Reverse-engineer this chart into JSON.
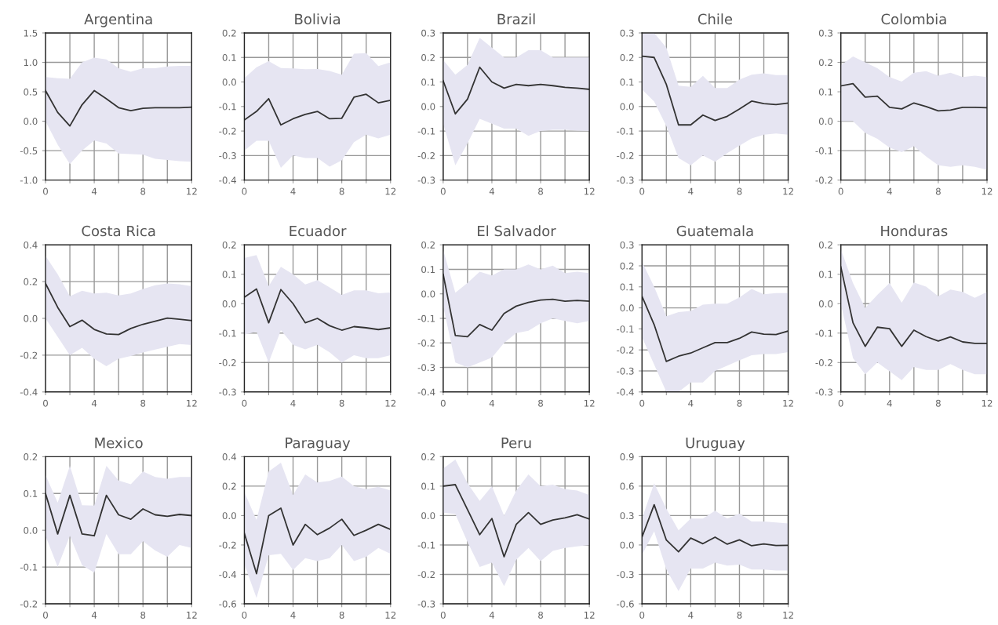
{
  "chart_data": [
    {
      "type": "line",
      "title": "Argentina",
      "x": [
        0,
        1,
        2,
        3,
        4,
        5,
        6,
        7,
        8,
        9,
        10,
        11,
        12
      ],
      "xlim": [
        0,
        12
      ],
      "ylim": [
        -1.0,
        1.5
      ],
      "grid": true,
      "xticks": [
        0,
        {
          "value": 2,
          "label": null
        },
        4,
        {
          "value": 6,
          "label": null
        },
        8,
        {
          "value": 10,
          "label": null
        },
        12
      ],
      "yticks": [
        {
          "value": -1.0,
          "label": "-1.0"
        },
        {
          "value": -0.5,
          "label": "-0.5"
        },
        {
          "value": 0,
          "label": "0.0"
        },
        {
          "value": 0.5,
          "label": "0.5"
        },
        {
          "value": 1.0,
          "label": "1.0"
        },
        {
          "value": 1.5,
          "label": "1.5"
        }
      ],
      "series": [
        {
          "color": "#333333",
          "values": [
            0.52,
            0.15,
            -0.08,
            0.28,
            0.52,
            0.38,
            0.23,
            0.18,
            0.22,
            0.23,
            0.23,
            0.23,
            0.24
          ],
          "lower": [
            0.0,
            -0.4,
            -0.73,
            -0.5,
            -0.33,
            -0.38,
            -0.55,
            -0.56,
            -0.57,
            -0.64,
            -0.66,
            -0.68,
            -0.69
          ],
          "upper": [
            0.75,
            0.73,
            0.72,
            1.0,
            1.08,
            1.05,
            0.9,
            0.84,
            0.9,
            0.9,
            0.93,
            0.94,
            0.94
          ]
        }
      ]
    },
    {
      "type": "line",
      "title": "Bolivia",
      "x": [
        0,
        1,
        2,
        3,
        4,
        5,
        6,
        7,
        8,
        9,
        10,
        11,
        12
      ],
      "xlim": [
        0,
        12
      ],
      "ylim": [
        -0.4,
        0.2
      ],
      "grid": true,
      "xticks": [
        0,
        {
          "value": 2,
          "label": null
        },
        4,
        {
          "value": 6,
          "label": null
        },
        8,
        {
          "value": 10,
          "label": null
        },
        12
      ],
      "yticks": [
        {
          "value": -0.4,
          "label": "-0.4"
        },
        {
          "value": -0.3,
          "label": "-0.3"
        },
        {
          "value": -0.2,
          "label": "-0.2"
        },
        {
          "value": -0.1,
          "label": "-0.1"
        },
        {
          "value": 0,
          "label": "0.0"
        },
        {
          "value": 0.1,
          "label": "0.1"
        },
        {
          "value": 0.2,
          "label": "0.2"
        }
      ],
      "series": [
        {
          "color": "#333333",
          "values": [
            -0.155,
            -0.12,
            -0.068,
            -0.175,
            -0.15,
            -0.132,
            -0.12,
            -0.15,
            -0.148,
            -0.062,
            -0.05,
            -0.085,
            -0.075
          ],
          "lower": [
            -0.28,
            -0.24,
            -0.24,
            -0.35,
            -0.3,
            -0.31,
            -0.31,
            -0.345,
            -0.32,
            -0.245,
            -0.215,
            -0.23,
            -0.215
          ],
          "upper": [
            0.015,
            0.06,
            0.085,
            0.057,
            0.055,
            0.052,
            0.053,
            0.045,
            0.03,
            0.115,
            0.118,
            0.065,
            0.08
          ]
        }
      ]
    },
    {
      "type": "line",
      "title": "Brazil",
      "x": [
        0,
        1,
        2,
        3,
        4,
        5,
        6,
        7,
        8,
        9,
        10,
        11,
        12
      ],
      "xlim": [
        0,
        12
      ],
      "ylim": [
        -0.3,
        0.3
      ],
      "grid": true,
      "xticks": [
        0,
        {
          "value": 2,
          "label": null
        },
        4,
        {
          "value": 6,
          "label": null
        },
        8,
        {
          "value": 10,
          "label": null
        },
        12
      ],
      "yticks": [
        {
          "value": -0.3,
          "label": "-0.3"
        },
        {
          "value": -0.2,
          "label": "-0.2"
        },
        {
          "value": -0.1,
          "label": "-0.1"
        },
        {
          "value": 0,
          "label": "0.0"
        },
        {
          "value": 0.1,
          "label": "0.1"
        },
        {
          "value": 0.2,
          "label": "0.2"
        },
        {
          "value": 0.3,
          "label": "0.3"
        }
      ],
      "series": [
        {
          "color": "#333333",
          "values": [
            0.105,
            -0.03,
            0.03,
            0.16,
            0.1,
            0.075,
            0.09,
            0.085,
            0.09,
            0.085,
            0.078,
            0.075,
            0.07
          ],
          "lower": [
            -0.07,
            -0.24,
            -0.15,
            -0.05,
            -0.07,
            -0.09,
            -0.09,
            -0.12,
            -0.1,
            -0.095,
            -0.095,
            -0.098,
            -0.1
          ],
          "upper": [
            0.19,
            0.13,
            0.17,
            0.28,
            0.24,
            0.2,
            0.2,
            0.23,
            0.23,
            0.2,
            0.2,
            0.2,
            0.2
          ]
        }
      ]
    },
    {
      "type": "line",
      "title": "Chile",
      "x": [
        0,
        1,
        2,
        3,
        4,
        5,
        6,
        7,
        8,
        9,
        10,
        11,
        12
      ],
      "xlim": [
        0,
        12
      ],
      "ylim": [
        -0.3,
        0.3
      ],
      "grid": true,
      "xticks": [
        0,
        {
          "value": 2,
          "label": null
        },
        4,
        {
          "value": 6,
          "label": null
        },
        8,
        {
          "value": 10,
          "label": null
        },
        12
      ],
      "yticks": [
        {
          "value": -0.3,
          "label": "-0.3"
        },
        {
          "value": -0.2,
          "label": "-0.2"
        },
        {
          "value": -0.1,
          "label": "-0.1"
        },
        {
          "value": 0,
          "label": "0.0"
        },
        {
          "value": 0.1,
          "label": "0.1"
        },
        {
          "value": 0.2,
          "label": "0.2"
        },
        {
          "value": 0.3,
          "label": "0.3"
        }
      ],
      "series": [
        {
          "color": "#333333",
          "values": [
            0.205,
            0.2,
            0.09,
            -0.075,
            -0.075,
            -0.035,
            -0.057,
            -0.04,
            -0.01,
            0.022,
            0.012,
            0.008,
            0.014
          ],
          "lower": [
            0.07,
            0.02,
            -0.08,
            -0.21,
            -0.24,
            -0.2,
            -0.225,
            -0.19,
            -0.16,
            -0.13,
            -0.115,
            -0.11,
            -0.115
          ],
          "upper": [
            0.3,
            0.3,
            0.24,
            0.085,
            0.08,
            0.125,
            0.075,
            0.075,
            0.11,
            0.13,
            0.135,
            0.128,
            0.128
          ]
        }
      ]
    },
    {
      "type": "line",
      "title": "Colombia",
      "x": [
        0,
        1,
        2,
        3,
        4,
        5,
        6,
        7,
        8,
        9,
        10,
        11,
        12
      ],
      "xlim": [
        0,
        12
      ],
      "ylim": [
        -0.2,
        0.3
      ],
      "grid": true,
      "xticks": [
        0,
        {
          "value": 2,
          "label": null
        },
        4,
        {
          "value": 6,
          "label": null
        },
        8,
        {
          "value": 10,
          "label": null
        },
        12
      ],
      "yticks": [
        {
          "value": -0.2,
          "label": "-0.2"
        },
        {
          "value": -0.1,
          "label": "-0.1"
        },
        {
          "value": 0,
          "label": "0.0"
        },
        {
          "value": 0.1,
          "label": "0.1"
        },
        {
          "value": 0.2,
          "label": "0.2"
        },
        {
          "value": 0.3,
          "label": "0.3"
        }
      ],
      "series": [
        {
          "color": "#333333",
          "values": [
            0.12,
            0.128,
            0.082,
            0.085,
            0.047,
            0.042,
            0.062,
            0.05,
            0.035,
            0.038,
            0.047,
            0.047,
            0.046
          ],
          "lower": [
            0.0,
            0.0,
            -0.04,
            -0.06,
            -0.09,
            -0.105,
            -0.085,
            -0.12,
            -0.15,
            -0.155,
            -0.15,
            -0.155,
            -0.165
          ],
          "upper": [
            0.19,
            0.22,
            0.2,
            0.18,
            0.15,
            0.135,
            0.165,
            0.17,
            0.155,
            0.165,
            0.15,
            0.155,
            0.15
          ]
        }
      ]
    },
    {
      "type": "line",
      "title": "Costa Rica",
      "x": [
        0,
        1,
        2,
        3,
        4,
        5,
        6,
        7,
        8,
        9,
        10,
        11,
        12
      ],
      "xlim": [
        0,
        12
      ],
      "ylim": [
        -0.4,
        0.4
      ],
      "grid": true,
      "xticks": [
        0,
        {
          "value": 2,
          "label": null
        },
        4,
        {
          "value": 6,
          "label": null
        },
        8,
        {
          "value": 10,
          "label": null
        },
        12
      ],
      "yticks": [
        {
          "value": -0.4,
          "label": "-0.4"
        },
        {
          "value": -0.2,
          "label": "-0.2"
        },
        {
          "value": 0,
          "label": "0.0"
        },
        {
          "value": 0.2,
          "label": "0.2"
        },
        {
          "value": 0.4,
          "label": "0.4"
        }
      ],
      "series": [
        {
          "color": "#333333",
          "values": [
            0.19,
            0.06,
            -0.045,
            -0.01,
            -0.06,
            -0.085,
            -0.088,
            -0.055,
            -0.032,
            -0.015,
            0.002,
            -0.005,
            -0.012
          ],
          "lower": [
            0.0,
            -0.1,
            -0.2,
            -0.16,
            -0.22,
            -0.26,
            -0.22,
            -0.205,
            -0.185,
            -0.17,
            -0.155,
            -0.14,
            -0.145
          ],
          "upper": [
            0.34,
            0.24,
            0.12,
            0.15,
            0.135,
            0.14,
            0.125,
            0.135,
            0.16,
            0.18,
            0.19,
            0.185,
            0.175
          ]
        }
      ]
    },
    {
      "type": "line",
      "title": "Ecuador",
      "x": [
        0,
        1,
        2,
        3,
        4,
        5,
        6,
        7,
        8,
        9,
        10,
        11,
        12
      ],
      "xlim": [
        0,
        12
      ],
      "ylim": [
        -0.3,
        0.2
      ],
      "grid": true,
      "xticks": [
        0,
        {
          "value": 2,
          "label": null
        },
        4,
        {
          "value": 6,
          "label": null
        },
        8,
        {
          "value": 10,
          "label": null
        },
        12
      ],
      "yticks": [
        {
          "value": -0.3,
          "label": "-0.3"
        },
        {
          "value": -0.2,
          "label": "-0.2"
        },
        {
          "value": -0.1,
          "label": "-0.1"
        },
        {
          "value": 0,
          "label": "0.0"
        },
        {
          "value": 0.1,
          "label": "0.1"
        },
        {
          "value": 0.2,
          "label": "0.2"
        }
      ],
      "series": [
        {
          "color": "#333333",
          "values": [
            0.022,
            0.05,
            -0.065,
            0.048,
            0.0,
            -0.065,
            -0.05,
            -0.075,
            -0.09,
            -0.078,
            -0.082,
            -0.088,
            -0.082
          ],
          "lower": [
            -0.105,
            -0.095,
            -0.2,
            -0.09,
            -0.14,
            -0.155,
            -0.14,
            -0.165,
            -0.2,
            -0.175,
            -0.185,
            -0.185,
            -0.175
          ],
          "upper": [
            0.155,
            0.165,
            0.06,
            0.125,
            0.1,
            0.065,
            0.08,
            0.055,
            0.03,
            0.045,
            0.045,
            0.035,
            0.038
          ]
        }
      ]
    },
    {
      "type": "line",
      "title": "El Salvador",
      "x": [
        0,
        1,
        2,
        3,
        4,
        5,
        6,
        7,
        8,
        9,
        10,
        11,
        12
      ],
      "xlim": [
        0,
        12
      ],
      "ylim": [
        -0.4,
        0.2
      ],
      "grid": true,
      "xticks": [
        0,
        {
          "value": 2,
          "label": null
        },
        4,
        {
          "value": 6,
          "label": null
        },
        8,
        {
          "value": 10,
          "label": null
        },
        12
      ],
      "yticks": [
        {
          "value": -0.4,
          "label": "-0.4"
        },
        {
          "value": -0.3,
          "label": "-0.3"
        },
        {
          "value": -0.2,
          "label": "-0.2"
        },
        {
          "value": -0.1,
          "label": "-0.1"
        },
        {
          "value": 0,
          "label": "0.0"
        },
        {
          "value": 0.1,
          "label": "0.1"
        },
        {
          "value": 0.2,
          "label": "0.2"
        }
      ],
      "series": [
        {
          "color": "#333333",
          "values": [
            0.08,
            -0.17,
            -0.175,
            -0.125,
            -0.148,
            -0.08,
            -0.05,
            -0.035,
            -0.025,
            -0.022,
            -0.03,
            -0.027,
            -0.03
          ],
          "lower": [
            -0.05,
            -0.28,
            -0.3,
            -0.28,
            -0.26,
            -0.2,
            -0.16,
            -0.15,
            -0.12,
            -0.1,
            -0.11,
            -0.12,
            -0.11
          ],
          "upper": [
            0.18,
            0.005,
            0.045,
            0.09,
            0.075,
            0.1,
            0.1,
            0.12,
            0.1,
            0.115,
            0.085,
            0.09,
            0.085
          ]
        }
      ]
    },
    {
      "type": "line",
      "title": "Guatemala",
      "x": [
        0,
        1,
        2,
        3,
        4,
        5,
        6,
        7,
        8,
        9,
        10,
        11,
        12
      ],
      "xlim": [
        0,
        12
      ],
      "ylim": [
        -0.4,
        0.3
      ],
      "grid": true,
      "xticks": [
        0,
        {
          "value": 2,
          "label": null
        },
        4,
        {
          "value": 6,
          "label": null
        },
        8,
        {
          "value": 10,
          "label": null
        },
        12
      ],
      "yticks": [
        {
          "value": -0.4,
          "label": "-0.4"
        },
        {
          "value": -0.3,
          "label": "-0.3"
        },
        {
          "value": -0.2,
          "label": "-0.2"
        },
        {
          "value": -0.1,
          "label": "-0.1"
        },
        {
          "value": 0,
          "label": "0.0"
        },
        {
          "value": 0.1,
          "label": "0.1"
        },
        {
          "value": 0.2,
          "label": "0.2"
        },
        {
          "value": 0.3,
          "label": "0.3"
        }
      ],
      "series": [
        {
          "color": "#333333",
          "values": [
            0.055,
            -0.08,
            -0.255,
            -0.23,
            -0.215,
            -0.19,
            -0.165,
            -0.165,
            -0.145,
            -0.115,
            -0.125,
            -0.127,
            -0.11
          ],
          "lower": [
            -0.14,
            -0.27,
            -0.4,
            -0.4,
            -0.355,
            -0.355,
            -0.3,
            -0.275,
            -0.25,
            -0.225,
            -0.22,
            -0.22,
            -0.21
          ],
          "upper": [
            0.22,
            0.1,
            -0.04,
            -0.02,
            -0.015,
            0.015,
            0.02,
            0.02,
            0.05,
            0.09,
            0.065,
            0.07,
            0.07
          ]
        }
      ]
    },
    {
      "type": "line",
      "title": "Honduras",
      "x": [
        0,
        1,
        2,
        3,
        4,
        5,
        6,
        7,
        8,
        9,
        10,
        11,
        12
      ],
      "xlim": [
        0,
        12
      ],
      "ylim": [
        -0.3,
        0.2
      ],
      "grid": true,
      "xticks": [
        0,
        {
          "value": 2,
          "label": null
        },
        4,
        {
          "value": 6,
          "label": null
        },
        8,
        {
          "value": 10,
          "label": null
        },
        12
      ],
      "yticks": [
        {
          "value": -0.3,
          "label": "-0.3"
        },
        {
          "value": -0.2,
          "label": "-0.2"
        },
        {
          "value": -0.1,
          "label": "-0.1"
        },
        {
          "value": 0,
          "label": "0.0"
        },
        {
          "value": 0.1,
          "label": "0.1"
        },
        {
          "value": 0.2,
          "label": "0.2"
        }
      ],
      "series": [
        {
          "color": "#333333",
          "values": [
            0.125,
            -0.065,
            -0.145,
            -0.08,
            -0.085,
            -0.145,
            -0.09,
            -0.112,
            -0.127,
            -0.113,
            -0.13,
            -0.135,
            -0.135
          ],
          "lower": [
            0.0,
            -0.185,
            -0.24,
            -0.2,
            -0.23,
            -0.26,
            -0.215,
            -0.225,
            -0.225,
            -0.205,
            -0.225,
            -0.24,
            -0.24
          ],
          "upper": [
            0.185,
            0.07,
            -0.015,
            0.03,
            0.07,
            0.003,
            0.072,
            0.058,
            0.025,
            0.048,
            0.04,
            0.02,
            0.04
          ]
        }
      ]
    },
    {
      "type": "line",
      "title": "Mexico",
      "x": [
        0,
        1,
        2,
        3,
        4,
        5,
        6,
        7,
        8,
        9,
        10,
        11,
        12
      ],
      "xlim": [
        0,
        12
      ],
      "ylim": [
        -0.2,
        0.2
      ],
      "grid": true,
      "xticks": [
        0,
        {
          "value": 2,
          "label": null
        },
        4,
        {
          "value": 6,
          "label": null
        },
        8,
        {
          "value": 10,
          "label": null
        },
        12
      ],
      "yticks": [
        {
          "value": -0.2,
          "label": "-0.2"
        },
        {
          "value": -0.1,
          "label": "-0.1"
        },
        {
          "value": 0,
          "label": "0.0"
        },
        {
          "value": 0.1,
          "label": "0.1"
        },
        {
          "value": 0.2,
          "label": "0.2"
        }
      ],
      "series": [
        {
          "color": "#333333",
          "values": [
            0.1,
            -0.01,
            0.095,
            -0.01,
            -0.015,
            0.095,
            0.042,
            0.03,
            0.058,
            0.042,
            0.038,
            0.043,
            0.04
          ],
          "lower": [
            -0.015,
            -0.1,
            -0.015,
            -0.095,
            -0.115,
            -0.01,
            -0.065,
            -0.065,
            -0.03,
            -0.055,
            -0.072,
            -0.04,
            -0.048
          ],
          "upper": [
            0.15,
            0.075,
            0.175,
            0.068,
            0.067,
            0.175,
            0.135,
            0.125,
            0.16,
            0.145,
            0.14,
            0.145,
            0.145
          ]
        }
      ]
    },
    {
      "type": "line",
      "title": "Paraguay",
      "x": [
        0,
        1,
        2,
        3,
        4,
        5,
        6,
        7,
        8,
        9,
        10,
        11,
        12
      ],
      "xlim": [
        0,
        12
      ],
      "ylim": [
        -0.6,
        0.4
      ],
      "grid": true,
      "xticks": [
        0,
        {
          "value": 2,
          "label": null
        },
        4,
        {
          "value": 6,
          "label": null
        },
        8,
        {
          "value": 10,
          "label": null
        },
        12
      ],
      "yticks": [
        {
          "value": -0.6,
          "label": "-0.6"
        },
        {
          "value": -0.4,
          "label": "-0.4"
        },
        {
          "value": -0.2,
          "label": "-0.2"
        },
        {
          "value": 0,
          "label": "0.0"
        },
        {
          "value": 0.2,
          "label": "0.2"
        },
        {
          "value": 0.4,
          "label": "0.4"
        }
      ],
      "series": [
        {
          "color": "#333333",
          "values": [
            -0.12,
            -0.395,
            0.0,
            0.05,
            -0.2,
            -0.06,
            -0.13,
            -0.085,
            -0.025,
            -0.135,
            -0.1,
            -0.06,
            -0.095
          ],
          "lower": [
            -0.33,
            -0.56,
            -0.27,
            -0.26,
            -0.37,
            -0.29,
            -0.31,
            -0.29,
            -0.2,
            -0.31,
            -0.28,
            -0.22,
            -0.26
          ],
          "upper": [
            0.16,
            -0.03,
            0.3,
            0.36,
            0.14,
            0.28,
            0.225,
            0.235,
            0.265,
            0.2,
            0.18,
            0.195,
            0.17
          ]
        }
      ]
    },
    {
      "type": "line",
      "title": "Peru",
      "x": [
        0,
        1,
        2,
        3,
        4,
        5,
        6,
        7,
        8,
        9,
        10,
        11,
        12
      ],
      "xlim": [
        0,
        12
      ],
      "ylim": [
        -0.3,
        0.2
      ],
      "grid": true,
      "xticks": [
        0,
        {
          "value": 2,
          "label": null
        },
        4,
        {
          "value": 6,
          "label": null
        },
        8,
        {
          "value": 10,
          "label": null
        },
        12
      ],
      "yticks": [
        {
          "value": -0.3,
          "label": "-0.3"
        },
        {
          "value": -0.2,
          "label": "-0.2"
        },
        {
          "value": -0.1,
          "label": "-0.1"
        },
        {
          "value": 0,
          "label": "0.0"
        },
        {
          "value": 0.1,
          "label": "0.1"
        },
        {
          "value": 0.2,
          "label": "0.2"
        }
      ],
      "series": [
        {
          "color": "#333333",
          "values": [
            0.1,
            0.105,
            0.02,
            -0.065,
            -0.01,
            -0.14,
            -0.03,
            0.01,
            -0.03,
            -0.015,
            -0.008,
            0.003,
            -0.012
          ],
          "lower": [
            0.01,
            0.005,
            -0.09,
            -0.175,
            -0.16,
            -0.24,
            -0.15,
            -0.11,
            -0.155,
            -0.12,
            -0.11,
            -0.105,
            -0.1
          ],
          "upper": [
            0.16,
            0.19,
            0.11,
            0.05,
            0.1,
            0.0,
            0.085,
            0.14,
            0.1,
            0.105,
            0.09,
            0.085,
            0.07
          ]
        }
      ]
    },
    {
      "type": "line",
      "title": "Uruguay",
      "x": [
        0,
        1,
        2,
        3,
        4,
        5,
        6,
        7,
        8,
        9,
        10,
        11,
        12
      ],
      "xlim": [
        0,
        12
      ],
      "ylim": [
        -0.6,
        0.9
      ],
      "grid": true,
      "xticks": [
        0,
        {
          "value": 2,
          "label": null
        },
        4,
        {
          "value": 6,
          "label": null
        },
        8,
        {
          "value": 10,
          "label": null
        },
        12
      ],
      "yticks": [
        {
          "value": -0.6,
          "label": "-0.6"
        },
        {
          "value": -0.3,
          "label": "-0.3"
        },
        {
          "value": 0,
          "label": "0.0"
        },
        {
          "value": 0.3,
          "label": "0.3"
        },
        {
          "value": 0.6,
          "label": "0.6"
        },
        {
          "value": 0.9,
          "label": "0.9"
        }
      ],
      "series": [
        {
          "color": "#333333",
          "values": [
            0.08,
            0.41,
            0.05,
            -0.07,
            0.07,
            0.013,
            0.08,
            0.008,
            0.053,
            -0.008,
            0.01,
            -0.005,
            -0.003
          ],
          "lower": [
            -0.1,
            0.14,
            -0.25,
            -0.47,
            -0.24,
            -0.24,
            -0.18,
            -0.21,
            -0.2,
            -0.25,
            -0.25,
            -0.26,
            -0.26
          ],
          "upper": [
            0.27,
            0.63,
            0.37,
            0.15,
            0.27,
            0.27,
            0.35,
            0.27,
            0.32,
            0.24,
            0.24,
            0.23,
            0.22
          ]
        }
      ]
    }
  ]
}
